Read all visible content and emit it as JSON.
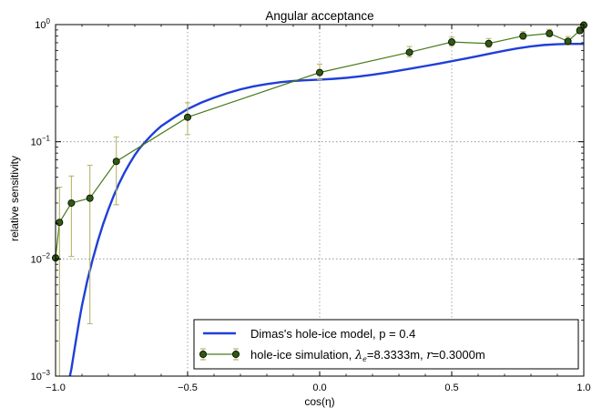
{
  "chart_data": {
    "type": "line",
    "title": "Angular acceptance",
    "xlabel": "cos(η)",
    "ylabel": "relative sensitivity",
    "xlim": [
      -1.0,
      1.0
    ],
    "ylim": [
      0.001,
      1.0
    ],
    "yscale": "log",
    "grid": true,
    "legend_position": "lower-right",
    "x_ticks": [
      {
        "value": -1.0,
        "label": "−1.0"
      },
      {
        "value": -0.5,
        "label": "−0.5"
      },
      {
        "value": 0.0,
        "label": "0.0"
      },
      {
        "value": 0.5,
        "label": "0.5"
      },
      {
        "value": 1.0,
        "label": "1.0"
      }
    ],
    "y_ticks": [
      {
        "value": 0.001,
        "base": "10",
        "exp": "−3"
      },
      {
        "value": 0.01,
        "base": "10",
        "exp": "−2"
      },
      {
        "value": 0.1,
        "base": "10",
        "exp": "−1"
      },
      {
        "value": 1.0,
        "base": "10",
        "exp": "0"
      }
    ],
    "series": [
      {
        "name": "Dimas's hole-ice model, p = 0.4",
        "kind": "model",
        "color": "#1f3fd9",
        "x": [
          -0.95,
          -0.94,
          -0.93,
          -0.92,
          -0.91,
          -0.9,
          -0.88,
          -0.86,
          -0.84,
          -0.82,
          -0.8,
          -0.78,
          -0.76,
          -0.74,
          -0.72,
          -0.7,
          -0.68,
          -0.66,
          -0.64,
          -0.62,
          -0.6,
          -0.55,
          -0.5,
          -0.45,
          -0.4,
          -0.35,
          -0.3,
          -0.25,
          -0.2,
          -0.15,
          -0.1,
          -0.05,
          0.0,
          0.05,
          0.1,
          0.15,
          0.2,
          0.25,
          0.3,
          0.35,
          0.4,
          0.45,
          0.5,
          0.55,
          0.6,
          0.65,
          0.7,
          0.75,
          0.8,
          0.85,
          0.9,
          0.95,
          1.0
        ],
        "y": [
          0.0009,
          0.00115,
          0.0016,
          0.0022,
          0.003,
          0.004,
          0.0065,
          0.0098,
          0.0142,
          0.0198,
          0.0265,
          0.0345,
          0.0438,
          0.054,
          0.065,
          0.077,
          0.089,
          0.1,
          0.112,
          0.124,
          0.136,
          0.162,
          0.19,
          0.215,
          0.238,
          0.26,
          0.28,
          0.297,
          0.311,
          0.322,
          0.33,
          0.335,
          0.339,
          0.344,
          0.351,
          0.361,
          0.373,
          0.388,
          0.405,
          0.423,
          0.443,
          0.464,
          0.487,
          0.512,
          0.539,
          0.568,
          0.598,
          0.627,
          0.652,
          0.67,
          0.68,
          0.684,
          0.685
        ]
      },
      {
        "name": "hole-ice simulation, λe=8.3333m, r=0.3000m",
        "kind": "simulation",
        "color": "#4a7a1a",
        "marker_color": "#2f5a12",
        "errorbar_color": "#b8b66a",
        "x": [
          -1.0,
          -0.985,
          -0.94,
          -0.87,
          -0.77,
          -0.5,
          0.0,
          0.34,
          0.5,
          0.64,
          0.77,
          0.87,
          0.94,
          0.985,
          1.0
        ],
        "y": [
          0.0102,
          0.0205,
          0.03,
          0.033,
          0.068,
          0.162,
          0.39,
          0.58,
          0.71,
          0.69,
          0.8,
          0.84,
          0.72,
          0.89,
          0.99
        ],
        "y_err_low": [
          0.0102,
          0.0205,
          0.0195,
          0.0302,
          0.039,
          0.047,
          0.05,
          0.05,
          0.05,
          0.05,
          0.05,
          0.05,
          0.05,
          0.05,
          0.04
        ],
        "y_err_high": [
          0.0102,
          0.0205,
          0.021,
          0.03,
          0.042,
          0.053,
          0.07,
          0.07,
          0.07,
          0.07,
          0.07,
          0.07,
          0.07,
          0.07,
          0.04
        ]
      }
    ]
  },
  "legend": {
    "model_label": "Dimas's hole-ice model, p = 0.4",
    "sim_label_prefix": "hole-ice simulation, ",
    "sim_lambda_symbol": "λ",
    "sim_lambda_sub": "e",
    "sim_lambda_value": "=8.3333m, ",
    "sim_r_symbol": "r",
    "sim_r_value": "=0.3000m"
  }
}
